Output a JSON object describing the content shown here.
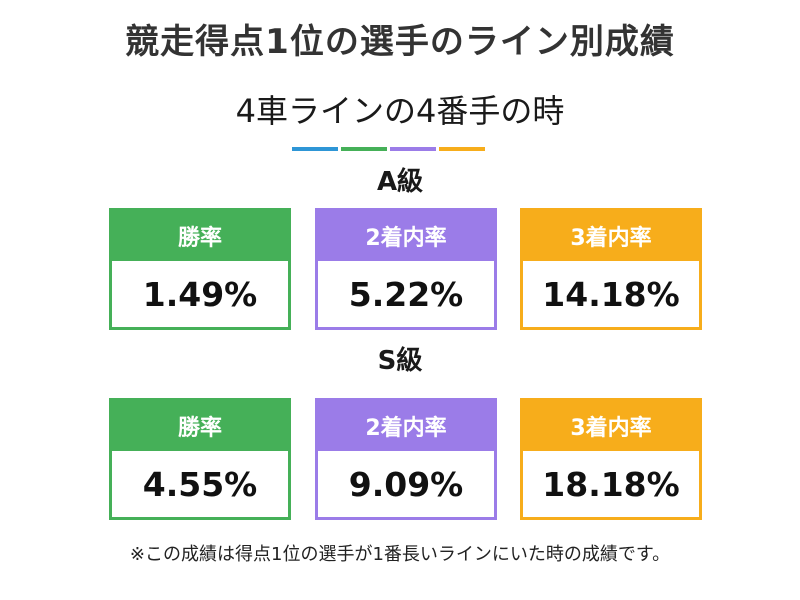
{
  "title": "競走得点1位の選手のライン別成績",
  "subtitle": "4車ラインの4番手の時",
  "note": "※この成績は得点1位の選手が1番長いラインにいた時の成績です。",
  "colors": {
    "win": "#45b058",
    "top2": "#9b7ce8",
    "top3": "#f7ad1b",
    "accent": [
      "#2e96d6",
      "#45b058",
      "#9b7ce8",
      "#f7ad1b"
    ]
  },
  "chart_data": {
    "type": "table",
    "columns": [
      "勝率",
      "2着内率",
      "3着内率"
    ],
    "rows": [
      {
        "label": "A級",
        "values": [
          "1.49%",
          "5.22%",
          "14.18%"
        ]
      },
      {
        "label": "S級",
        "values": [
          "4.55%",
          "9.09%",
          "18.18%"
        ]
      }
    ]
  }
}
